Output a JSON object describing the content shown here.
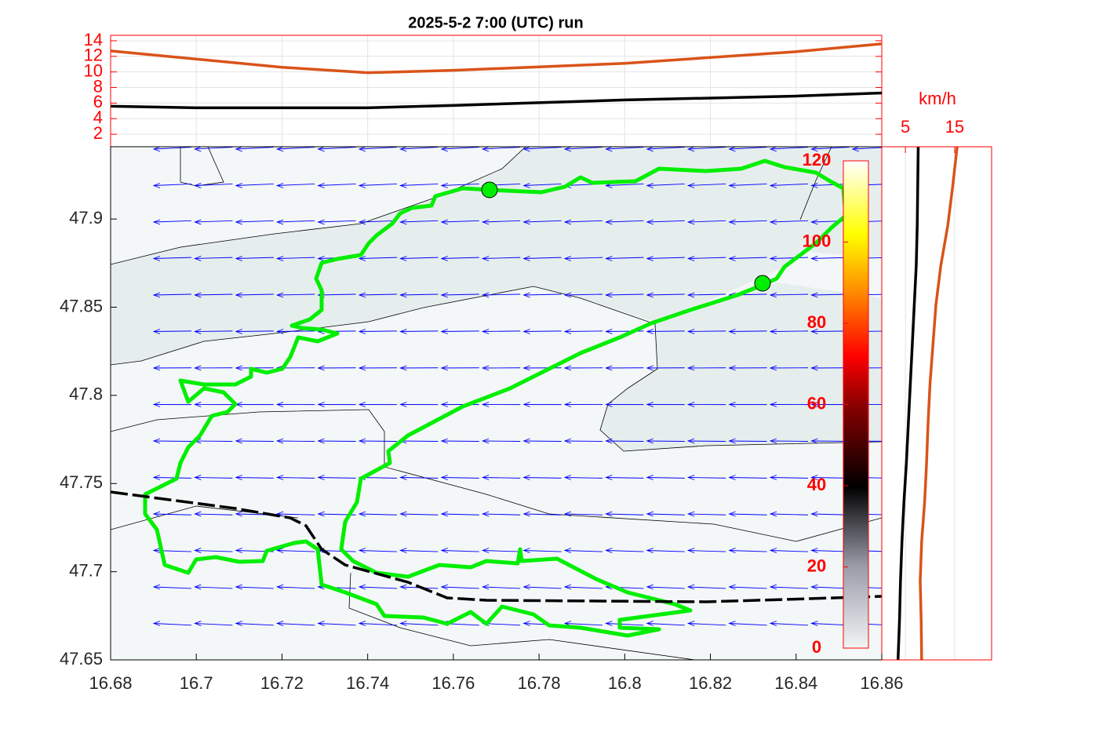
{
  "title": "2025-5-2  7:00 (UTC) run",
  "top_panel": {
    "type": "line",
    "ylim": [
      0.4,
      14.7
    ],
    "yticks": [
      2,
      4,
      6,
      8,
      10,
      12,
      14
    ],
    "series": [
      {
        "color": "#d95319",
        "x": [
          16.68,
          16.72,
          16.74,
          16.76,
          16.8,
          16.84,
          16.86
        ],
        "values": [
          12.7,
          10.6,
          9.9,
          10.2,
          11.1,
          12.6,
          13.6
        ]
      },
      {
        "color": "#000000",
        "x": [
          16.68,
          16.7,
          16.74,
          16.76,
          16.8,
          16.84,
          16.86
        ],
        "values": [
          5.6,
          5.4,
          5.4,
          5.7,
          6.4,
          6.9,
          7.3
        ]
      }
    ]
  },
  "map": {
    "xlim": [
      16.68,
      16.86
    ],
    "ylim": [
      47.65,
      47.941
    ],
    "xticks": [
      16.68,
      16.7,
      16.72,
      16.74,
      16.76,
      16.78,
      16.8,
      16.82,
      16.84,
      16.86
    ],
    "yticks": [
      47.65,
      47.7,
      47.75,
      47.8,
      47.85,
      47.9
    ]
  },
  "colorbar": {
    "lim": [
      0,
      120
    ],
    "ticks": [
      0,
      20,
      40,
      60,
      80,
      100,
      120
    ]
  },
  "side_panel": {
    "type": "line",
    "label": "km/h",
    "xlim": [
      0.2,
      22.5
    ],
    "xticks": [
      5,
      15
    ],
    "series": [
      {
        "color": "#000000",
        "values": [
          3.5,
          3.8,
          4.0,
          4.3,
          4.7,
          5.2,
          5.6,
          6.0,
          6.4,
          6.8,
          7.2,
          7.4,
          7.5,
          7.6
        ]
      },
      {
        "color": "#d95319",
        "values": [
          8.3,
          8.2,
          8.0,
          8.3,
          8.9,
          9.3,
          9.6,
          10.0,
          10.6,
          11.2,
          12.2,
          13.6,
          14.6,
          15.5
        ]
      }
    ]
  }
}
